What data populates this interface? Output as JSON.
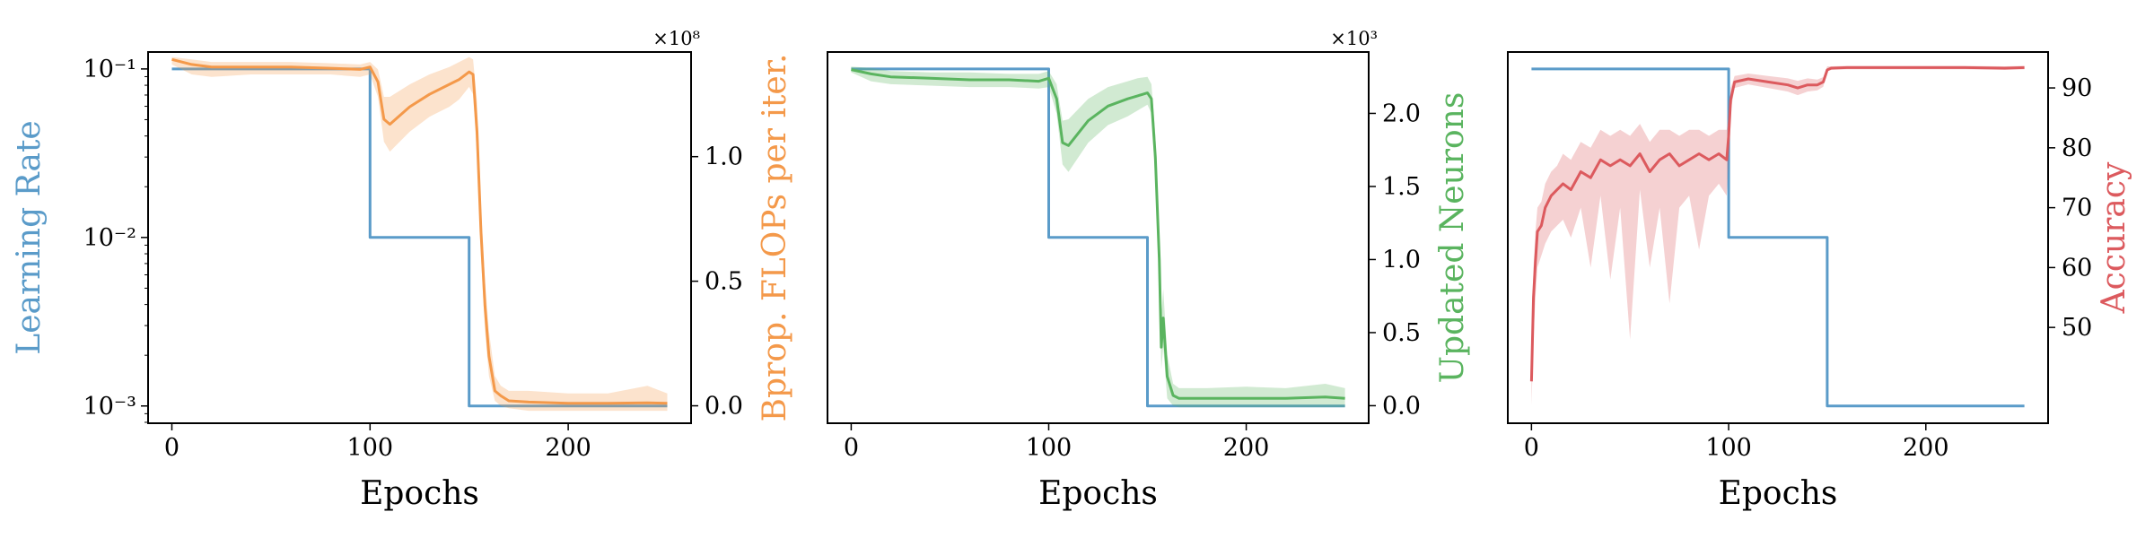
{
  "colors": {
    "lr": "#5a9bc9",
    "flops": "#f4994a",
    "neurons": "#5ab45f",
    "accuracy": "#dc5a5e"
  },
  "chart_data": [
    {
      "type": "line",
      "xlabel": "Epochs",
      "ylabel_left": "Learning Rate",
      "ylabel_right": "Bprop. FLOPs per iter.",
      "right_multiplier": "×10⁸",
      "xlim": [
        -12,
        262
      ],
      "xticks": [
        {
          "v": 0,
          "label": "0"
        },
        {
          "v": 100,
          "label": "100"
        },
        {
          "v": 200,
          "label": "200"
        }
      ],
      "left_axis": {
        "scale": "log",
        "ylim": [
          0.00079,
          0.126
        ],
        "ticks": [
          {
            "v": 0.1,
            "label": "10⁻¹"
          },
          {
            "v": 0.01,
            "label": "10⁻²"
          },
          {
            "v": 0.001,
            "label": "10⁻³"
          }
        ]
      },
      "right_axis": {
        "scale": "linear",
        "ylim": [
          -0.07,
          1.42
        ],
        "ticks": [
          {
            "v": 0.0,
            "label": "0.0"
          },
          {
            "v": 0.5,
            "label": "0.5"
          },
          {
            "v": 1.0,
            "label": "1.0"
          }
        ]
      },
      "series": [
        {
          "color_key": "lr",
          "axis": "left",
          "step": true,
          "x": [
            0,
            100,
            100,
            150,
            150,
            250
          ],
          "y": [
            0.1,
            0.1,
            0.01,
            0.01,
            0.001,
            0.001
          ]
        },
        {
          "color_key": "flops",
          "axis": "right",
          "band": true,
          "x": [
            0,
            10,
            20,
            40,
            60,
            80,
            95,
            100,
            104,
            107,
            110,
            120,
            130,
            140,
            145,
            150,
            152,
            154,
            156,
            158,
            160,
            163,
            166,
            170,
            180,
            200,
            220,
            240,
            250
          ],
          "y": [
            1.39,
            1.37,
            1.36,
            1.36,
            1.36,
            1.355,
            1.35,
            1.36,
            1.3,
            1.15,
            1.13,
            1.2,
            1.25,
            1.29,
            1.31,
            1.34,
            1.33,
            1.1,
            0.7,
            0.4,
            0.2,
            0.06,
            0.04,
            0.02,
            0.015,
            0.01,
            0.01,
            0.012,
            0.01
          ],
          "band_lo": [
            1.37,
            1.33,
            1.32,
            1.33,
            1.33,
            1.33,
            1.32,
            1.33,
            1.24,
            1.06,
            1.02,
            1.1,
            1.16,
            1.2,
            1.23,
            1.28,
            1.25,
            1.0,
            0.6,
            0.3,
            0.12,
            0.02,
            0.0,
            -0.01,
            -0.02,
            -0.02,
            -0.02,
            -0.02,
            -0.02
          ],
          "band_hi": [
            1.4,
            1.39,
            1.38,
            1.38,
            1.38,
            1.375,
            1.37,
            1.38,
            1.35,
            1.24,
            1.24,
            1.29,
            1.33,
            1.36,
            1.38,
            1.4,
            1.39,
            1.22,
            0.8,
            0.5,
            0.3,
            0.12,
            0.08,
            0.06,
            0.06,
            0.05,
            0.05,
            0.08,
            0.05
          ]
        }
      ]
    },
    {
      "type": "line",
      "xlabel": "Epochs",
      "ylabel_left": "",
      "ylabel_right": "Updated Neurons",
      "right_multiplier": "×10³",
      "xlim": [
        -12,
        262
      ],
      "xticks": [
        {
          "v": 0,
          "label": "0"
        },
        {
          "v": 100,
          "label": "100"
        },
        {
          "v": 200,
          "label": "200"
        }
      ],
      "left_axis": {
        "scale": "log",
        "ylim": [
          0.00079,
          0.126
        ],
        "ticks": []
      },
      "right_axis": {
        "scale": "linear",
        "ylim": [
          -0.12,
          2.42
        ],
        "ticks": [
          {
            "v": 0.0,
            "label": "0.0"
          },
          {
            "v": 0.5,
            "label": "0.5"
          },
          {
            "v": 1.0,
            "label": "1.0"
          },
          {
            "v": 1.5,
            "label": "1.5"
          },
          {
            "v": 2.0,
            "label": "2.0"
          }
        ]
      },
      "series": [
        {
          "color_key": "lr",
          "axis": "left",
          "step": true,
          "x": [
            0,
            100,
            100,
            150,
            150,
            250
          ],
          "y": [
            0.1,
            0.1,
            0.01,
            0.01,
            0.001,
            0.001
          ]
        },
        {
          "color_key": "neurons",
          "axis": "right",
          "band": true,
          "x": [
            0,
            10,
            20,
            40,
            60,
            80,
            95,
            100,
            104,
            107,
            110,
            120,
            130,
            140,
            145,
            150,
            152,
            154,
            156,
            157,
            158,
            160,
            163,
            166,
            170,
            180,
            200,
            220,
            240,
            250
          ],
          "y": [
            2.3,
            2.27,
            2.25,
            2.24,
            2.23,
            2.23,
            2.22,
            2.24,
            2.1,
            1.8,
            1.78,
            1.95,
            2.05,
            2.1,
            2.12,
            2.14,
            2.1,
            1.7,
            1.0,
            0.4,
            0.6,
            0.2,
            0.07,
            0.05,
            0.05,
            0.05,
            0.05,
            0.05,
            0.06,
            0.05
          ],
          "band_lo": [
            2.28,
            2.22,
            2.2,
            2.19,
            2.18,
            2.18,
            2.17,
            2.18,
            2.0,
            1.65,
            1.6,
            1.8,
            1.92,
            1.98,
            2.02,
            2.06,
            2.0,
            1.55,
            0.85,
            0.25,
            0.4,
            0.05,
            0.0,
            -0.01,
            -0.01,
            -0.01,
            -0.01,
            -0.01,
            -0.01,
            -0.01
          ],
          "band_hi": [
            2.32,
            2.31,
            2.29,
            2.28,
            2.28,
            2.27,
            2.27,
            2.29,
            2.2,
            1.95,
            1.96,
            2.1,
            2.18,
            2.22,
            2.24,
            2.25,
            2.2,
            1.85,
            1.15,
            0.6,
            0.8,
            0.35,
            0.15,
            0.12,
            0.12,
            0.12,
            0.13,
            0.12,
            0.15,
            0.12
          ]
        }
      ]
    },
    {
      "type": "line",
      "xlabel": "Epochs",
      "ylabel_left": "",
      "ylabel_right": "Accuracy",
      "right_multiplier": "",
      "xlim": [
        -12,
        262
      ],
      "xticks": [
        {
          "v": 0,
          "label": "0"
        },
        {
          "v": 100,
          "label": "100"
        },
        {
          "v": 200,
          "label": "200"
        }
      ],
      "left_axis": {
        "scale": "log",
        "ylim": [
          0.00079,
          0.126
        ],
        "ticks": []
      },
      "right_axis": {
        "scale": "linear",
        "ylim": [
          34,
          96
        ],
        "ticks": [
          {
            "v": 50,
            "label": "50"
          },
          {
            "v": 60,
            "label": "60"
          },
          {
            "v": 70,
            "label": "70"
          },
          {
            "v": 80,
            "label": "80"
          },
          {
            "v": 90,
            "label": "90"
          }
        ]
      },
      "series": [
        {
          "color_key": "lr",
          "axis": "left",
          "step": true,
          "x": [
            0,
            100,
            100,
            150,
            150,
            250
          ],
          "y": [
            0.1,
            0.1,
            0.01,
            0.01,
            0.001,
            0.001
          ]
        },
        {
          "color_key": "accuracy",
          "axis": "right",
          "band": true,
          "x": [
            0,
            1,
            2,
            3,
            5,
            7,
            10,
            13,
            16,
            20,
            25,
            30,
            35,
            40,
            45,
            50,
            55,
            60,
            65,
            70,
            75,
            80,
            85,
            90,
            95,
            99,
            100,
            101,
            103,
            110,
            120,
            130,
            135,
            140,
            145,
            148,
            150,
            152,
            160,
            180,
            200,
            220,
            240,
            250
          ],
          "y": [
            41,
            55,
            61,
            66,
            67,
            70,
            72,
            73,
            74,
            73,
            76,
            75,
            78,
            77,
            78,
            77,
            79,
            76,
            78,
            79,
            77,
            78,
            79,
            78,
            79,
            78,
            82,
            88,
            91,
            91.5,
            91,
            90.5,
            90,
            90.5,
            90.5,
            91,
            93,
            93.3,
            93.4,
            93.4,
            93.4,
            93.4,
            93.3,
            93.4
          ],
          "band_lo": [
            37,
            48,
            55,
            60,
            62,
            64,
            66,
            67,
            68,
            65,
            70,
            60,
            72,
            58,
            70,
            48,
            73,
            60,
            70,
            54,
            70,
            72,
            63,
            72,
            74,
            72,
            78,
            86,
            90,
            90.6,
            90.0,
            89.4,
            88.8,
            89.4,
            89.6,
            90.2,
            92.8,
            93.0,
            93.1,
            93.1,
            93.1,
            93.1,
            93.0,
            93.1
          ],
          "band_hi": [
            45,
            60,
            66,
            70,
            71,
            74,
            76,
            77,
            79,
            78,
            81,
            80,
            83,
            82,
            83,
            82,
            84,
            81,
            83,
            83,
            82,
            83,
            83,
            82,
            83,
            83,
            85,
            90,
            92,
            92.4,
            92.0,
            91.6,
            91.2,
            91.6,
            91.4,
            91.8,
            93.6,
            93.6,
            93.7,
            93.7,
            93.7,
            93.7,
            93.6,
            93.7
          ]
        }
      ]
    }
  ]
}
